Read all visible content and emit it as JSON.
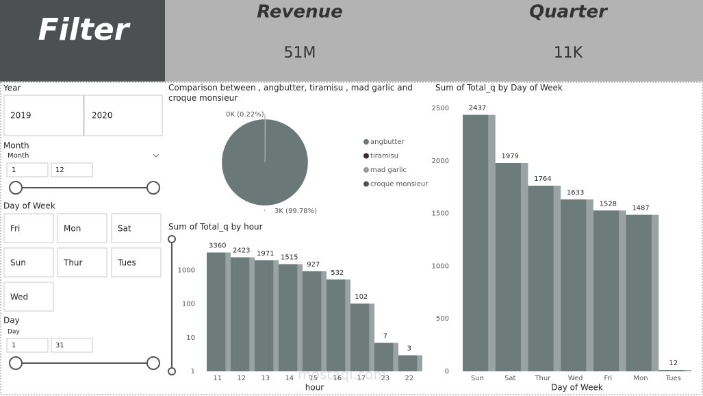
{
  "header": {
    "title": "Filter"
  },
  "cards": [
    {
      "label": "Revenue",
      "value": "51M"
    },
    {
      "label": "Quarter",
      "value": "11K"
    }
  ],
  "filters": {
    "year": {
      "label": "Year",
      "options": [
        "2019",
        "2020"
      ]
    },
    "month": {
      "label": "Month",
      "field": "Month",
      "min": 1,
      "max": 12
    },
    "day_of_week": {
      "label": "Day of Week",
      "options": [
        "Fri",
        "Mon",
        "Sat",
        "Sun",
        "Thur",
        "Tues",
        "Wed"
      ]
    },
    "day": {
      "label": "Day",
      "field": "Day",
      "min": 1,
      "max": 31
    }
  },
  "watermark": "mostaql.com",
  "chart_data": [
    {
      "type": "pie",
      "title": "Comparison between , angbutter, tiramisu , mad garlic and croque monsieur",
      "categories": [
        "angbutter",
        "tiramisu",
        "mad garlic",
        "croque monsieur"
      ],
      "values": [
        99.78,
        0.22,
        null,
        null
      ],
      "value_labels": [
        "3K (99.78%)",
        "0K (0.22%)",
        null,
        null
      ],
      "colors": [
        "#6b7878",
        "#3a2c2c",
        "#9a9a9a",
        "#4b5757"
      ],
      "legend": "right"
    },
    {
      "type": "bar",
      "title": "Sum of Total_q by hour",
      "x_label": "hour",
      "categories": [
        "11",
        "12",
        "13",
        "14",
        "15",
        "16",
        "17",
        "23",
        "22"
      ],
      "values": [
        3360,
        2423,
        1971,
        1515,
        927,
        532,
        102,
        7,
        3
      ],
      "log_scale": true,
      "ylim": [
        1,
        8000
      ],
      "yticks": [
        1,
        10,
        100,
        1000
      ],
      "color": "#6e7b7b",
      "data_labels": true
    },
    {
      "type": "bar",
      "title": "Sum of Total_q by Day of Week",
      "x_label": "Day of Week",
      "categories": [
        "Sun",
        "Sat",
        "Thur",
        "Wed",
        "Fri",
        "Mon",
        "Tues"
      ],
      "values": [
        2437,
        1979,
        1764,
        1633,
        1528,
        1487,
        12
      ],
      "log_scale": false,
      "ylim": [
        0,
        2500
      ],
      "yticks": [
        0,
        500,
        1000,
        1500,
        2000,
        2500
      ],
      "color": "#6e7b7b",
      "data_labels": true
    }
  ]
}
